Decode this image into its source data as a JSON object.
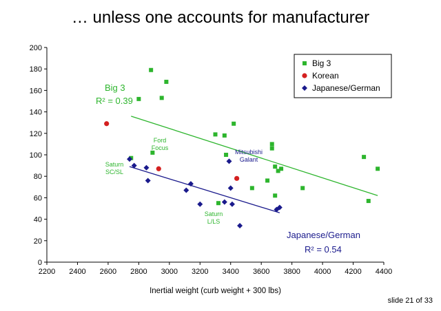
{
  "slide": {
    "title": "… unless one accounts for manufacturer",
    "footer": "slide 21 of 33"
  },
  "colors": {
    "big3": "#2db52d",
    "korean": "#d42020",
    "japanese_german": "#1a1a8c",
    "axis": "#000000"
  },
  "chart_data": {
    "type": "scatter",
    "xlabel": "Inertial weight (curb weight + 300 lbs)",
    "ylabel": "",
    "xlim": [
      2200,
      4400
    ],
    "ylim": [
      0,
      200
    ],
    "xticks": [
      2200,
      2400,
      2600,
      2800,
      3000,
      3200,
      3400,
      3600,
      3800,
      4000,
      4200,
      4400
    ],
    "yticks": [
      0,
      20,
      40,
      60,
      80,
      100,
      120,
      140,
      160,
      180,
      200
    ],
    "grid": false,
    "legend": "top-right",
    "series": [
      {
        "name": "Big 3",
        "color": "#2db52d",
        "marker": "square",
        "points": [
          {
            "x": 2750,
            "y": 97
          },
          {
            "x": 2800,
            "y": 152
          },
          {
            "x": 2880,
            "y": 179
          },
          {
            "x": 2890,
            "y": 102
          },
          {
            "x": 2950,
            "y": 153
          },
          {
            "x": 2980,
            "y": 168
          },
          {
            "x": 3300,
            "y": 119
          },
          {
            "x": 3320,
            "y": 55
          },
          {
            "x": 3360,
            "y": 118
          },
          {
            "x": 3370,
            "y": 100
          },
          {
            "x": 3420,
            "y": 129
          },
          {
            "x": 3540,
            "y": 69
          },
          {
            "x": 3640,
            "y": 76
          },
          {
            "x": 3670,
            "y": 110
          },
          {
            "x": 3670,
            "y": 106
          },
          {
            "x": 3690,
            "y": 89
          },
          {
            "x": 3690,
            "y": 62
          },
          {
            "x": 3710,
            "y": 85
          },
          {
            "x": 3730,
            "y": 87
          },
          {
            "x": 3870,
            "y": 69
          },
          {
            "x": 4270,
            "y": 98
          },
          {
            "x": 4300,
            "y": 57
          },
          {
            "x": 4360,
            "y": 87
          }
        ]
      },
      {
        "name": "Korean",
        "color": "#d42020",
        "marker": "circle",
        "points": [
          {
            "x": 2590,
            "y": 129
          },
          {
            "x": 2930,
            "y": 87
          },
          {
            "x": 3440,
            "y": 78
          }
        ]
      },
      {
        "name": "Japanese/German",
        "color": "#1a1a8c",
        "marker": "diamond",
        "points": [
          {
            "x": 2740,
            "y": 96
          },
          {
            "x": 2770,
            "y": 90
          },
          {
            "x": 2850,
            "y": 88
          },
          {
            "x": 2860,
            "y": 76
          },
          {
            "x": 3110,
            "y": 67
          },
          {
            "x": 3140,
            "y": 73
          },
          {
            "x": 3200,
            "y": 54
          },
          {
            "x": 3360,
            "y": 56
          },
          {
            "x": 3390,
            "y": 94
          },
          {
            "x": 3400,
            "y": 69
          },
          {
            "x": 3410,
            "y": 54
          },
          {
            "x": 3460,
            "y": 34
          },
          {
            "x": 3700,
            "y": 49
          },
          {
            "x": 3720,
            "y": 51
          }
        ]
      }
    ],
    "trendlines": [
      {
        "series": "Big 3",
        "color": "#2db52d",
        "from": {
          "x": 2750,
          "y": 136
        },
        "to": {
          "x": 4360,
          "y": 62
        }
      },
      {
        "series": "Japanese/German",
        "color": "#1a1a8c",
        "from": {
          "x": 2740,
          "y": 89
        },
        "to": {
          "x": 3720,
          "y": 46
        }
      }
    ],
    "fit_labels": {
      "big3_name": "Big 3",
      "big3_r2": "R² = 0.39",
      "jg_name": "Japanese/German",
      "jg_r2": "R² = 0.54"
    },
    "annotations": [
      {
        "id": "ford",
        "lines": [
          "Ford",
          "Focus"
        ],
        "color": "#2db52d"
      },
      {
        "id": "saturn-sc",
        "lines": [
          "Saturn",
          "SC/SL"
        ],
        "color": "#2db52d"
      },
      {
        "id": "saturn-l",
        "lines": [
          "Saturn",
          "L/LS"
        ],
        "color": "#2db52d"
      },
      {
        "id": "mitsubishi",
        "lines": [
          "Mitsubishi",
          "Galant"
        ],
        "color": "#1a1a8c"
      }
    ]
  }
}
